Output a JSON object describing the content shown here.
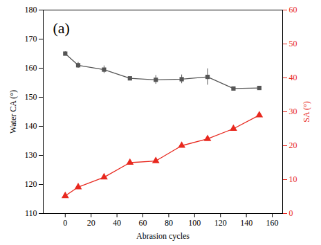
{
  "chart_data": {
    "type": "line",
    "annotations": [
      "(a)"
    ],
    "x_label": "Abrasion cycles",
    "y_label": "Water CA (°)",
    "y2_label": "SA (°)",
    "x": [
      0,
      10,
      30,
      50,
      70,
      90,
      110,
      130,
      150
    ],
    "xlim": [
      -17,
      168
    ],
    "xticks": [
      0,
      20,
      40,
      60,
      80,
      100,
      120,
      140,
      160
    ],
    "ylim": [
      110,
      180
    ],
    "yticks": [
      110,
      120,
      130,
      140,
      150,
      160,
      170,
      180
    ],
    "y2lim": [
      0,
      60
    ],
    "y2ticks": [
      0,
      10,
      20,
      30,
      40,
      50,
      60
    ],
    "series": [
      {
        "name": "Water CA (°)",
        "color": "#555555",
        "marker": "square",
        "line_style": "solid",
        "values": [
          165,
          161,
          159.5,
          156.5,
          156,
          156.2,
          157,
          153,
          153.2
        ],
        "error": [
          0.7,
          1,
          1.3,
          0.5,
          1.5,
          1.5,
          2.8,
          0.5,
          0.4
        ]
      },
      {
        "name": "SA (°)",
        "color": "#e8281e",
        "marker": "triangle",
        "line_style": "solid",
        "axis": "y2",
        "values": [
          5.2,
          7.8,
          10.7,
          15,
          15.5,
          20,
          22,
          25,
          29
        ]
      }
    ]
  }
}
